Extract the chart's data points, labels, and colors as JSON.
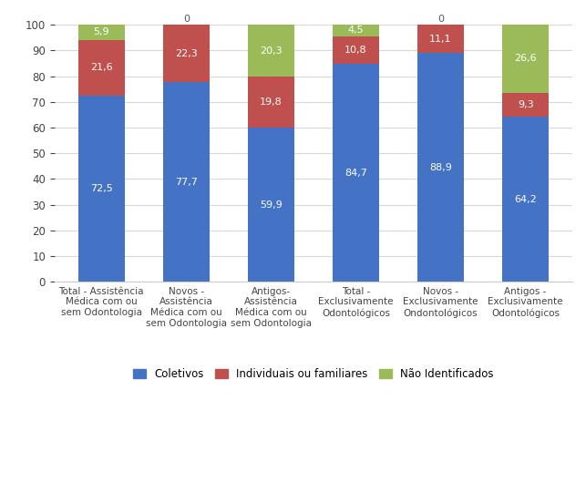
{
  "categories": [
    "Total - Assistência\nMédica com ou\nsem Odontologia",
    "Novos -\nAssistência\nMédica com ou\nsem Odontologia",
    "Antigos-\nAssistência\nMédica com ou\nsem Odontologia",
    "Total -\nExclusivamente\nOdontológicos",
    "Novos -\nExclusivamente\nOndontológicos",
    "Antigos -\nExclusivamente\nOdontológicos"
  ],
  "coletivos": [
    72.5,
    77.7,
    59.9,
    84.7,
    88.9,
    64.2
  ],
  "individuais": [
    21.6,
    22.3,
    19.8,
    10.8,
    11.1,
    9.3
  ],
  "nao_identificados": [
    5.9,
    0.0,
    20.3,
    4.5,
    0.0,
    26.6
  ],
  "labels_coletivos": [
    "72,5",
    "77,7",
    "59,9",
    "84,7",
    "88,9",
    "64,2"
  ],
  "labels_individuais": [
    "21,6",
    "22,3",
    "19,8",
    "10,8",
    "11,1",
    "9,3"
  ],
  "labels_nao_id": [
    "5,9",
    "0",
    "20,3",
    "4,5",
    "0",
    "26,6"
  ],
  "color_coletivos": "#4472C4",
  "color_individuais": "#C0504D",
  "color_nao_identificados": "#9BBB59",
  "legend_labels": [
    "Coletivos",
    "Individuais ou familiares",
    "Não Identificados"
  ],
  "ylim": [
    0,
    100
  ],
  "yticks": [
    0,
    10,
    20,
    30,
    40,
    50,
    60,
    70,
    80,
    90,
    100
  ],
  "bar_width": 0.55,
  "label_fontsize": 8.0,
  "tick_fontsize": 8.5,
  "legend_fontsize": 8.5,
  "background_color": "#FFFFFF"
}
